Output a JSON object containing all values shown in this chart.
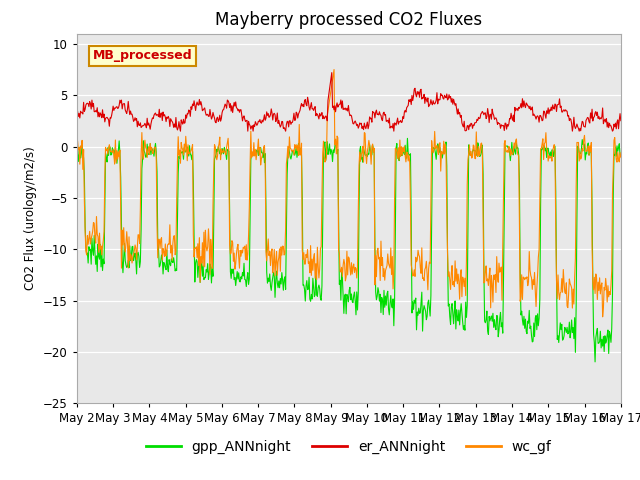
{
  "title": "Mayberry processed CO2 Fluxes",
  "ylabel": "CO2 Flux (urology/m2/s)",
  "xlabel": "",
  "ylim": [
    -25,
    11
  ],
  "yticks": [
    -25,
    -20,
    -15,
    -10,
    -5,
    0,
    5,
    10
  ],
  "n_days": 15,
  "n_per_day": 48,
  "x_tick_labels": [
    "May 2",
    "May 3",
    "May 4",
    "May 5",
    "May 6",
    "May 7",
    "May 8",
    "May 9",
    "May 10",
    "May 11",
    "May 12",
    "May 13",
    "May 14",
    "May 15",
    "May 16",
    "May 17"
  ],
  "colors": {
    "gpp": "#00dd00",
    "er": "#dd0000",
    "wc": "#ff8800"
  },
  "legend_labels": [
    "gpp_ANNnight",
    "er_ANNnight",
    "wc_gf"
  ],
  "annotation_text": "MB_processed",
  "annotation_bg": "#ffffcc",
  "annotation_border": "#cc8800",
  "annotation_text_color": "#cc0000",
  "bg_color": "#e8e8e8",
  "linewidth": 0.8,
  "figsize": [
    6.4,
    4.8
  ],
  "dpi": 100
}
